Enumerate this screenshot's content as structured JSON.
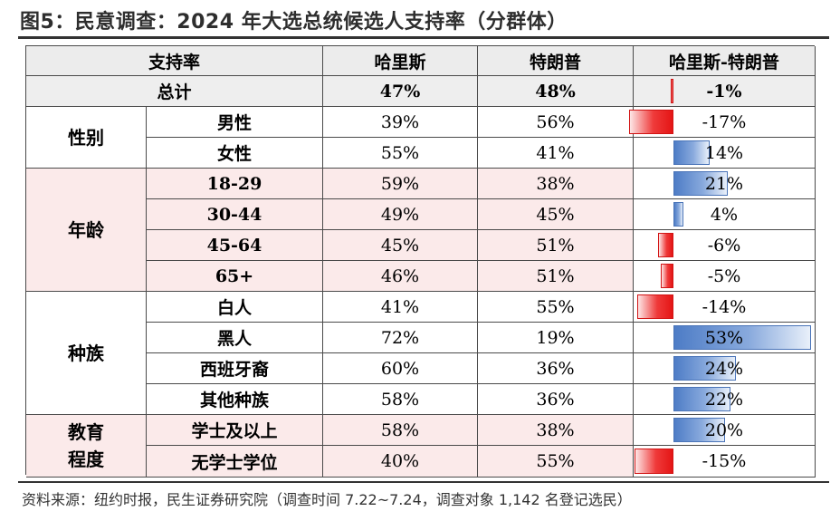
{
  "title": "图5：民意调查：2024 年大选总统候选人支持率（分群体）",
  "source": "资料来源：纽约时报，民生证券研究院（调查时间 7.22~7.24，调查对象 1,142 名登记选民）",
  "colors": {
    "negative_bar": "#e41515",
    "positive_bar": "#4d7cc6",
    "group_shade": "#fbeaea",
    "header_shade": "#ececec"
  },
  "table": {
    "headers": [
      "支持率",
      "哈里斯",
      "特朗普",
      "哈里斯-特朗普"
    ],
    "total": {
      "label": "总计",
      "harris": "47%",
      "trump": "48%",
      "diff": "-1%",
      "diff_value": -1
    },
    "groups": [
      {
        "name": "性别",
        "rows": [
          {
            "label": "男性",
            "harris": "39%",
            "trump": "56%",
            "diff": "-17%",
            "diff_value": -17
          },
          {
            "label": "女性",
            "harris": "55%",
            "trump": "41%",
            "diff": "14%",
            "diff_value": 14
          }
        ]
      },
      {
        "name": "年龄",
        "rows": [
          {
            "label": "18-29",
            "harris": "59%",
            "trump": "38%",
            "diff": "21%",
            "diff_value": 21
          },
          {
            "label": "30-44",
            "harris": "49%",
            "trump": "45%",
            "diff": "4%",
            "diff_value": 4
          },
          {
            "label": "45-64",
            "harris": "45%",
            "trump": "51%",
            "diff": "-6%",
            "diff_value": -6
          },
          {
            "label": "65+",
            "harris": "46%",
            "trump": "51%",
            "diff": "-5%",
            "diff_value": -5
          }
        ]
      },
      {
        "name": "种族",
        "rows": [
          {
            "label": "白人",
            "harris": "41%",
            "trump": "55%",
            "diff": "-14%",
            "diff_value": -14
          },
          {
            "label": "黑人",
            "harris": "72%",
            "trump": "19%",
            "diff": "53%",
            "diff_value": 53
          },
          {
            "label": "西班牙裔",
            "harris": "60%",
            "trump": "36%",
            "diff": "24%",
            "diff_value": 24
          },
          {
            "label": "其他种族",
            "harris": "58%",
            "trump": "36%",
            "diff": "22%",
            "diff_value": 22
          }
        ]
      },
      {
        "name": "教育程度",
        "rows": [
          {
            "label": "学士及以上",
            "harris": "58%",
            "trump": "38%",
            "diff": "20%",
            "diff_value": 20
          },
          {
            "label": "无学士学位",
            "harris": "40%",
            "trump": "55%",
            "diff": "-15%",
            "diff_value": -15
          }
        ]
      }
    ]
  }
}
